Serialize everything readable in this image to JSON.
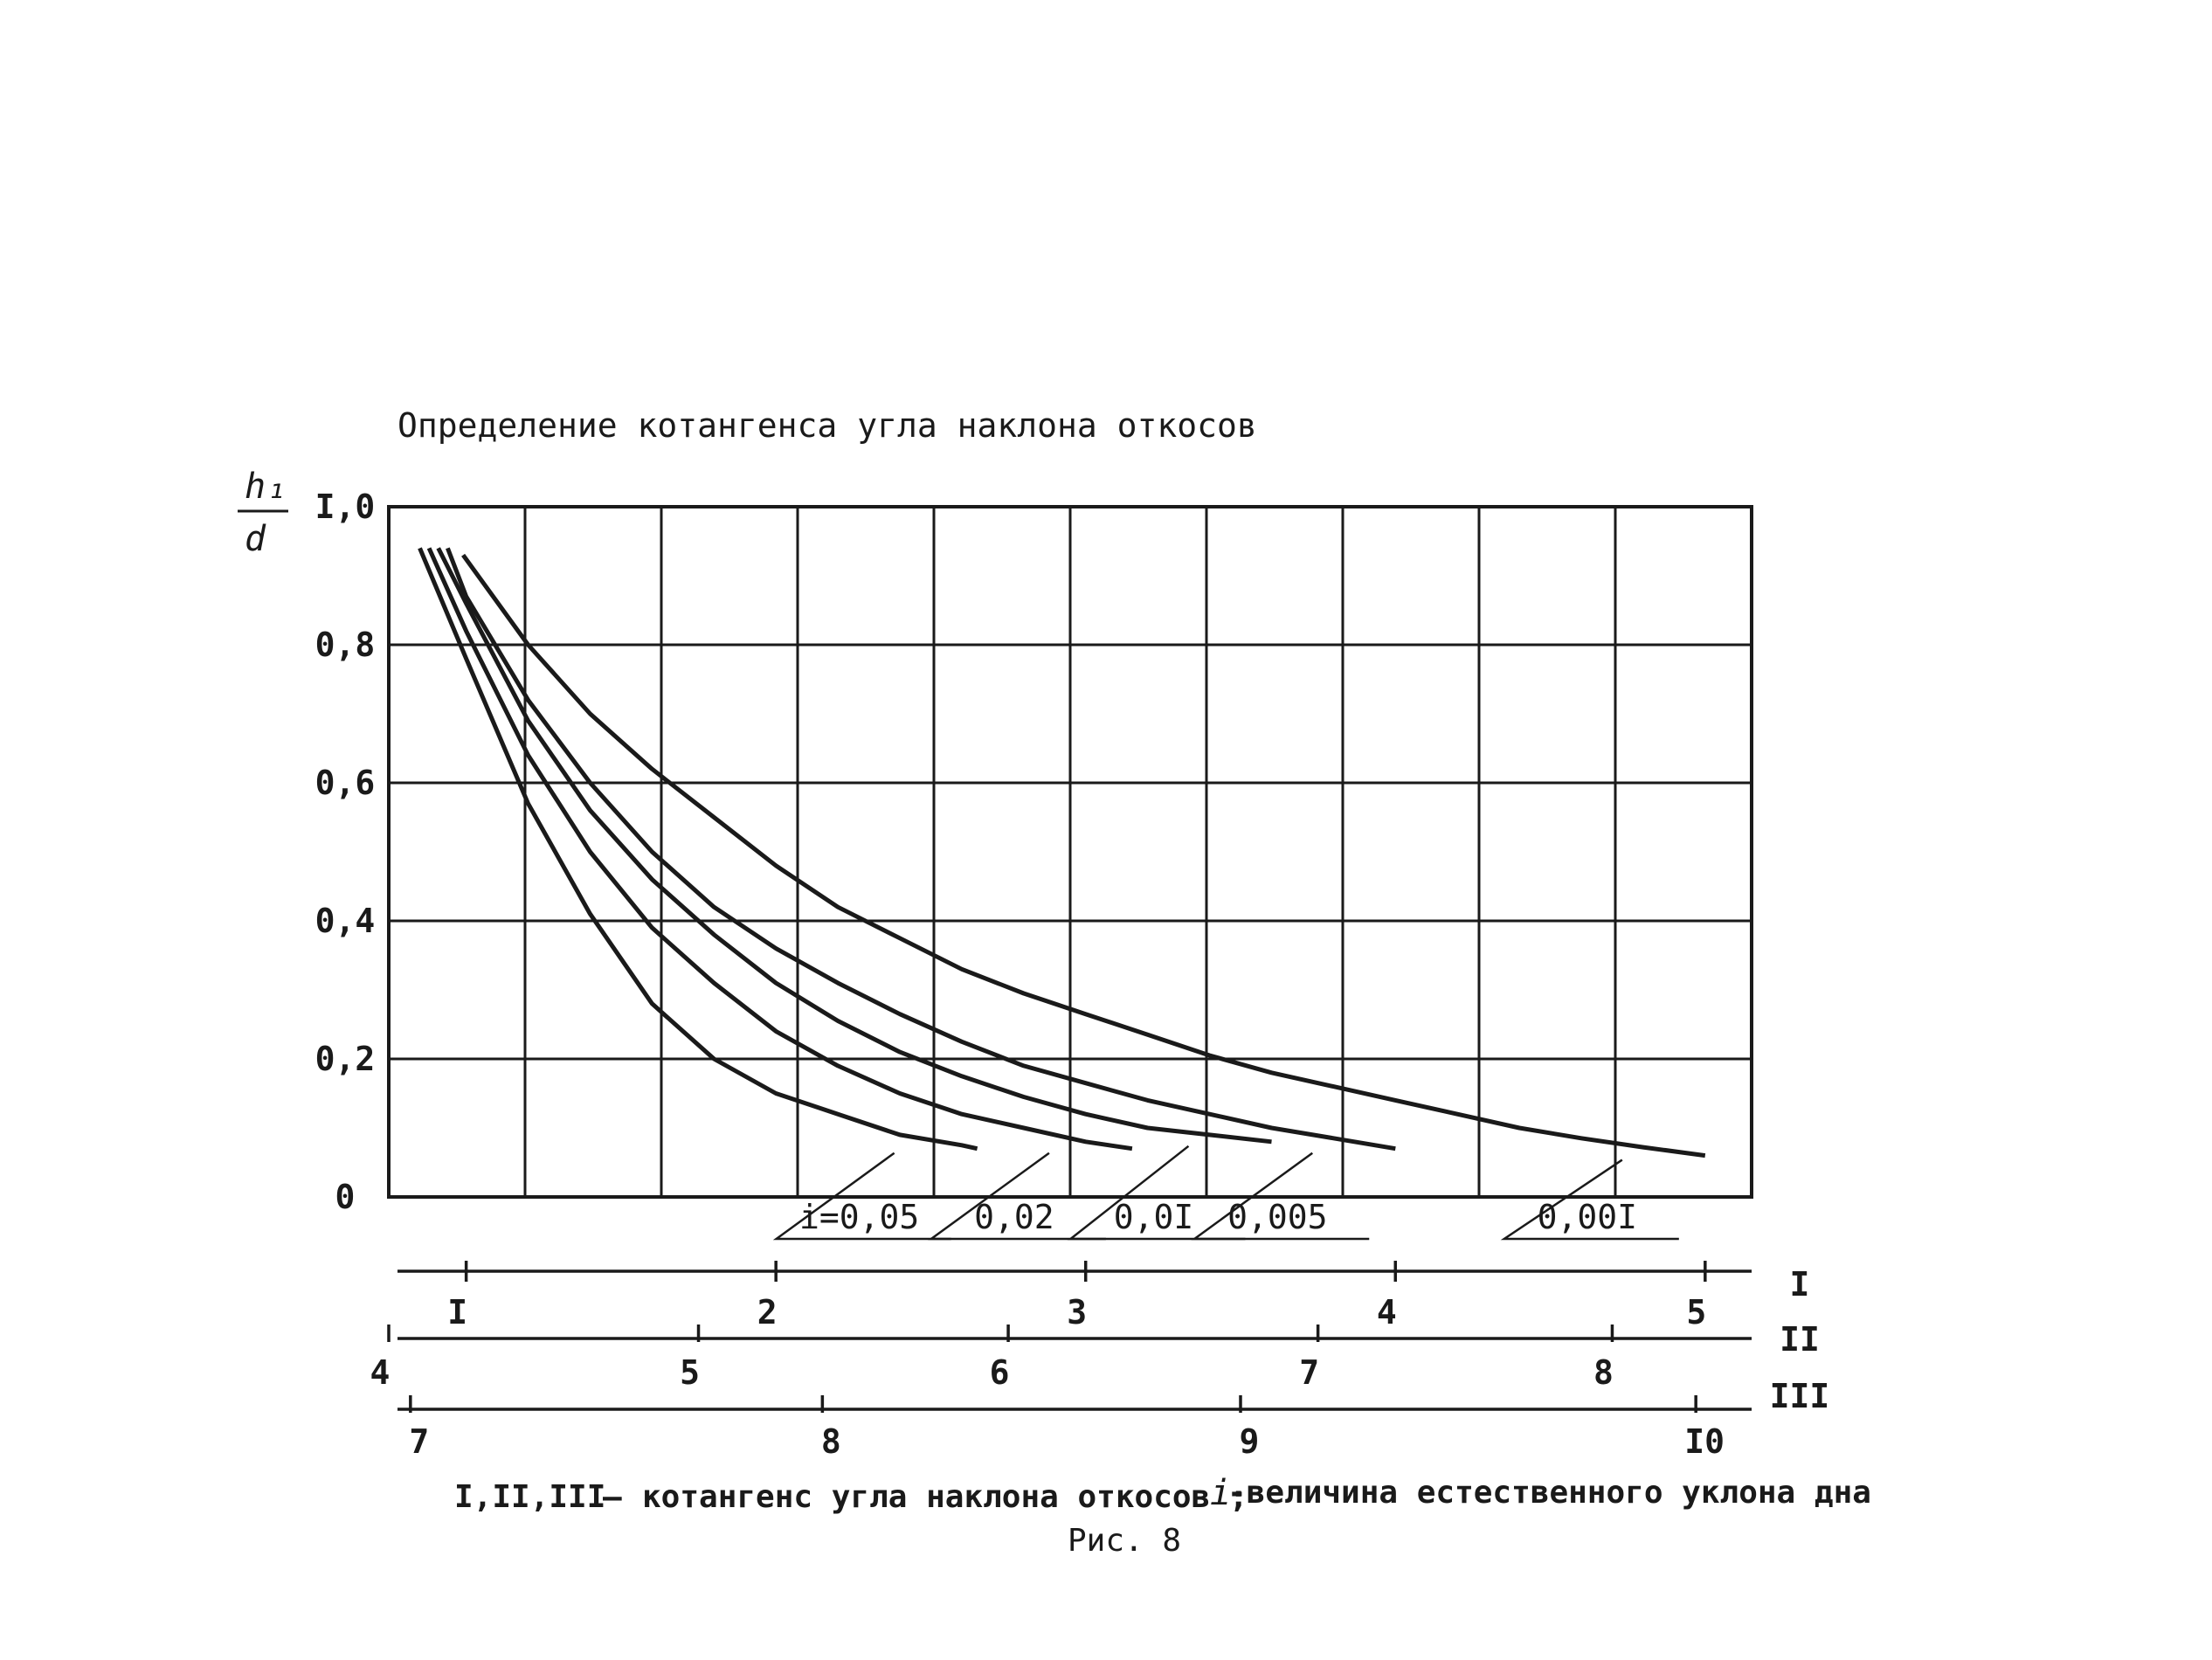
{
  "chart_data": {
    "type": "line",
    "title": "Определение котангенса угла наклона откосов",
    "ylabel_num": "h₁",
    "ylabel_den": "d",
    "ylim": [
      0,
      1.0
    ],
    "y_ticks": [
      "0",
      "0,2",
      "0,4",
      "0,6",
      "0,8",
      "I,0"
    ],
    "y_tick_values": [
      0,
      0.2,
      0.4,
      0.6,
      0.8,
      1.0
    ],
    "x_scale_I": {
      "name": "I",
      "xlim": [
        0.75,
        5.15
      ],
      "ticks": [
        "I",
        "2",
        "3",
        "4",
        "5"
      ],
      "tick_values": [
        1,
        2,
        3,
        4,
        5
      ]
    },
    "x_scale_II": {
      "name": "II",
      "ticks": [
        "4",
        "5",
        "6",
        "7",
        "8"
      ],
      "tick_values_on_scale_I": [
        0.75,
        1.75,
        2.75,
        3.75,
        4.7
      ]
    },
    "x_scale_III": {
      "name": "III",
      "ticks": [
        "7",
        "8",
        "9",
        "I0"
      ],
      "tick_values_on_scale_I": [
        0.82,
        2.15,
        3.5,
        4.97
      ]
    },
    "series": [
      {
        "name": "i=0,05",
        "x": [
          0.85,
          1.0,
          1.2,
          1.4,
          1.6,
          1.8,
          2.0,
          2.2,
          2.4,
          2.6,
          2.65
        ],
        "y": [
          0.94,
          0.78,
          0.57,
          0.41,
          0.28,
          0.2,
          0.15,
          0.12,
          0.09,
          0.075,
          0.07
        ]
      },
      {
        "name": "0,02",
        "x": [
          0.88,
          1.0,
          1.2,
          1.4,
          1.6,
          1.8,
          2.0,
          2.2,
          2.4,
          2.6,
          2.8,
          3.0,
          3.15
        ],
        "y": [
          0.94,
          0.82,
          0.64,
          0.5,
          0.39,
          0.31,
          0.24,
          0.19,
          0.15,
          0.12,
          0.1,
          0.08,
          0.07
        ]
      },
      {
        "name": "0,0I",
        "x": [
          0.91,
          1.0,
          1.2,
          1.4,
          1.6,
          1.8,
          2.0,
          2.2,
          2.4,
          2.6,
          2.8,
          3.0,
          3.2,
          3.4,
          3.6
        ],
        "y": [
          0.94,
          0.86,
          0.69,
          0.56,
          0.46,
          0.38,
          0.31,
          0.255,
          0.21,
          0.175,
          0.145,
          0.12,
          0.1,
          0.09,
          0.08
        ]
      },
      {
        "name": "0,005",
        "x": [
          0.94,
          1.0,
          1.2,
          1.4,
          1.6,
          1.8,
          2.0,
          2.2,
          2.4,
          2.6,
          2.8,
          3.0,
          3.2,
          3.4,
          3.6,
          3.8,
          4.0
        ],
        "y": [
          0.94,
          0.87,
          0.72,
          0.6,
          0.5,
          0.42,
          0.36,
          0.31,
          0.265,
          0.225,
          0.19,
          0.165,
          0.14,
          0.12,
          0.1,
          0.085,
          0.07
        ]
      },
      {
        "name": "0,00I",
        "x": [
          0.99,
          1.2,
          1.4,
          1.6,
          1.8,
          2.0,
          2.2,
          2.4,
          2.6,
          2.8,
          3.0,
          3.2,
          3.4,
          3.6,
          3.8,
          4.0,
          4.2,
          4.4,
          4.6,
          4.8,
          5.0
        ],
        "y": [
          0.93,
          0.8,
          0.7,
          0.62,
          0.55,
          0.48,
          0.42,
          0.375,
          0.33,
          0.295,
          0.265,
          0.235,
          0.205,
          0.18,
          0.16,
          0.14,
          0.12,
          0.1,
          0.085,
          0.072,
          0.06
        ]
      }
    ],
    "grid": true
  },
  "caption": {
    "roman": "I,II,III",
    "dash": "–",
    "text": "котангенс угла наклона откосов ;",
    "i_symbol": "i",
    "rest": "-величина естественного уклона дна",
    "figure": "Рис. 8"
  },
  "scale_labels": {
    "I": "I",
    "II": "II",
    "III": "III"
  }
}
